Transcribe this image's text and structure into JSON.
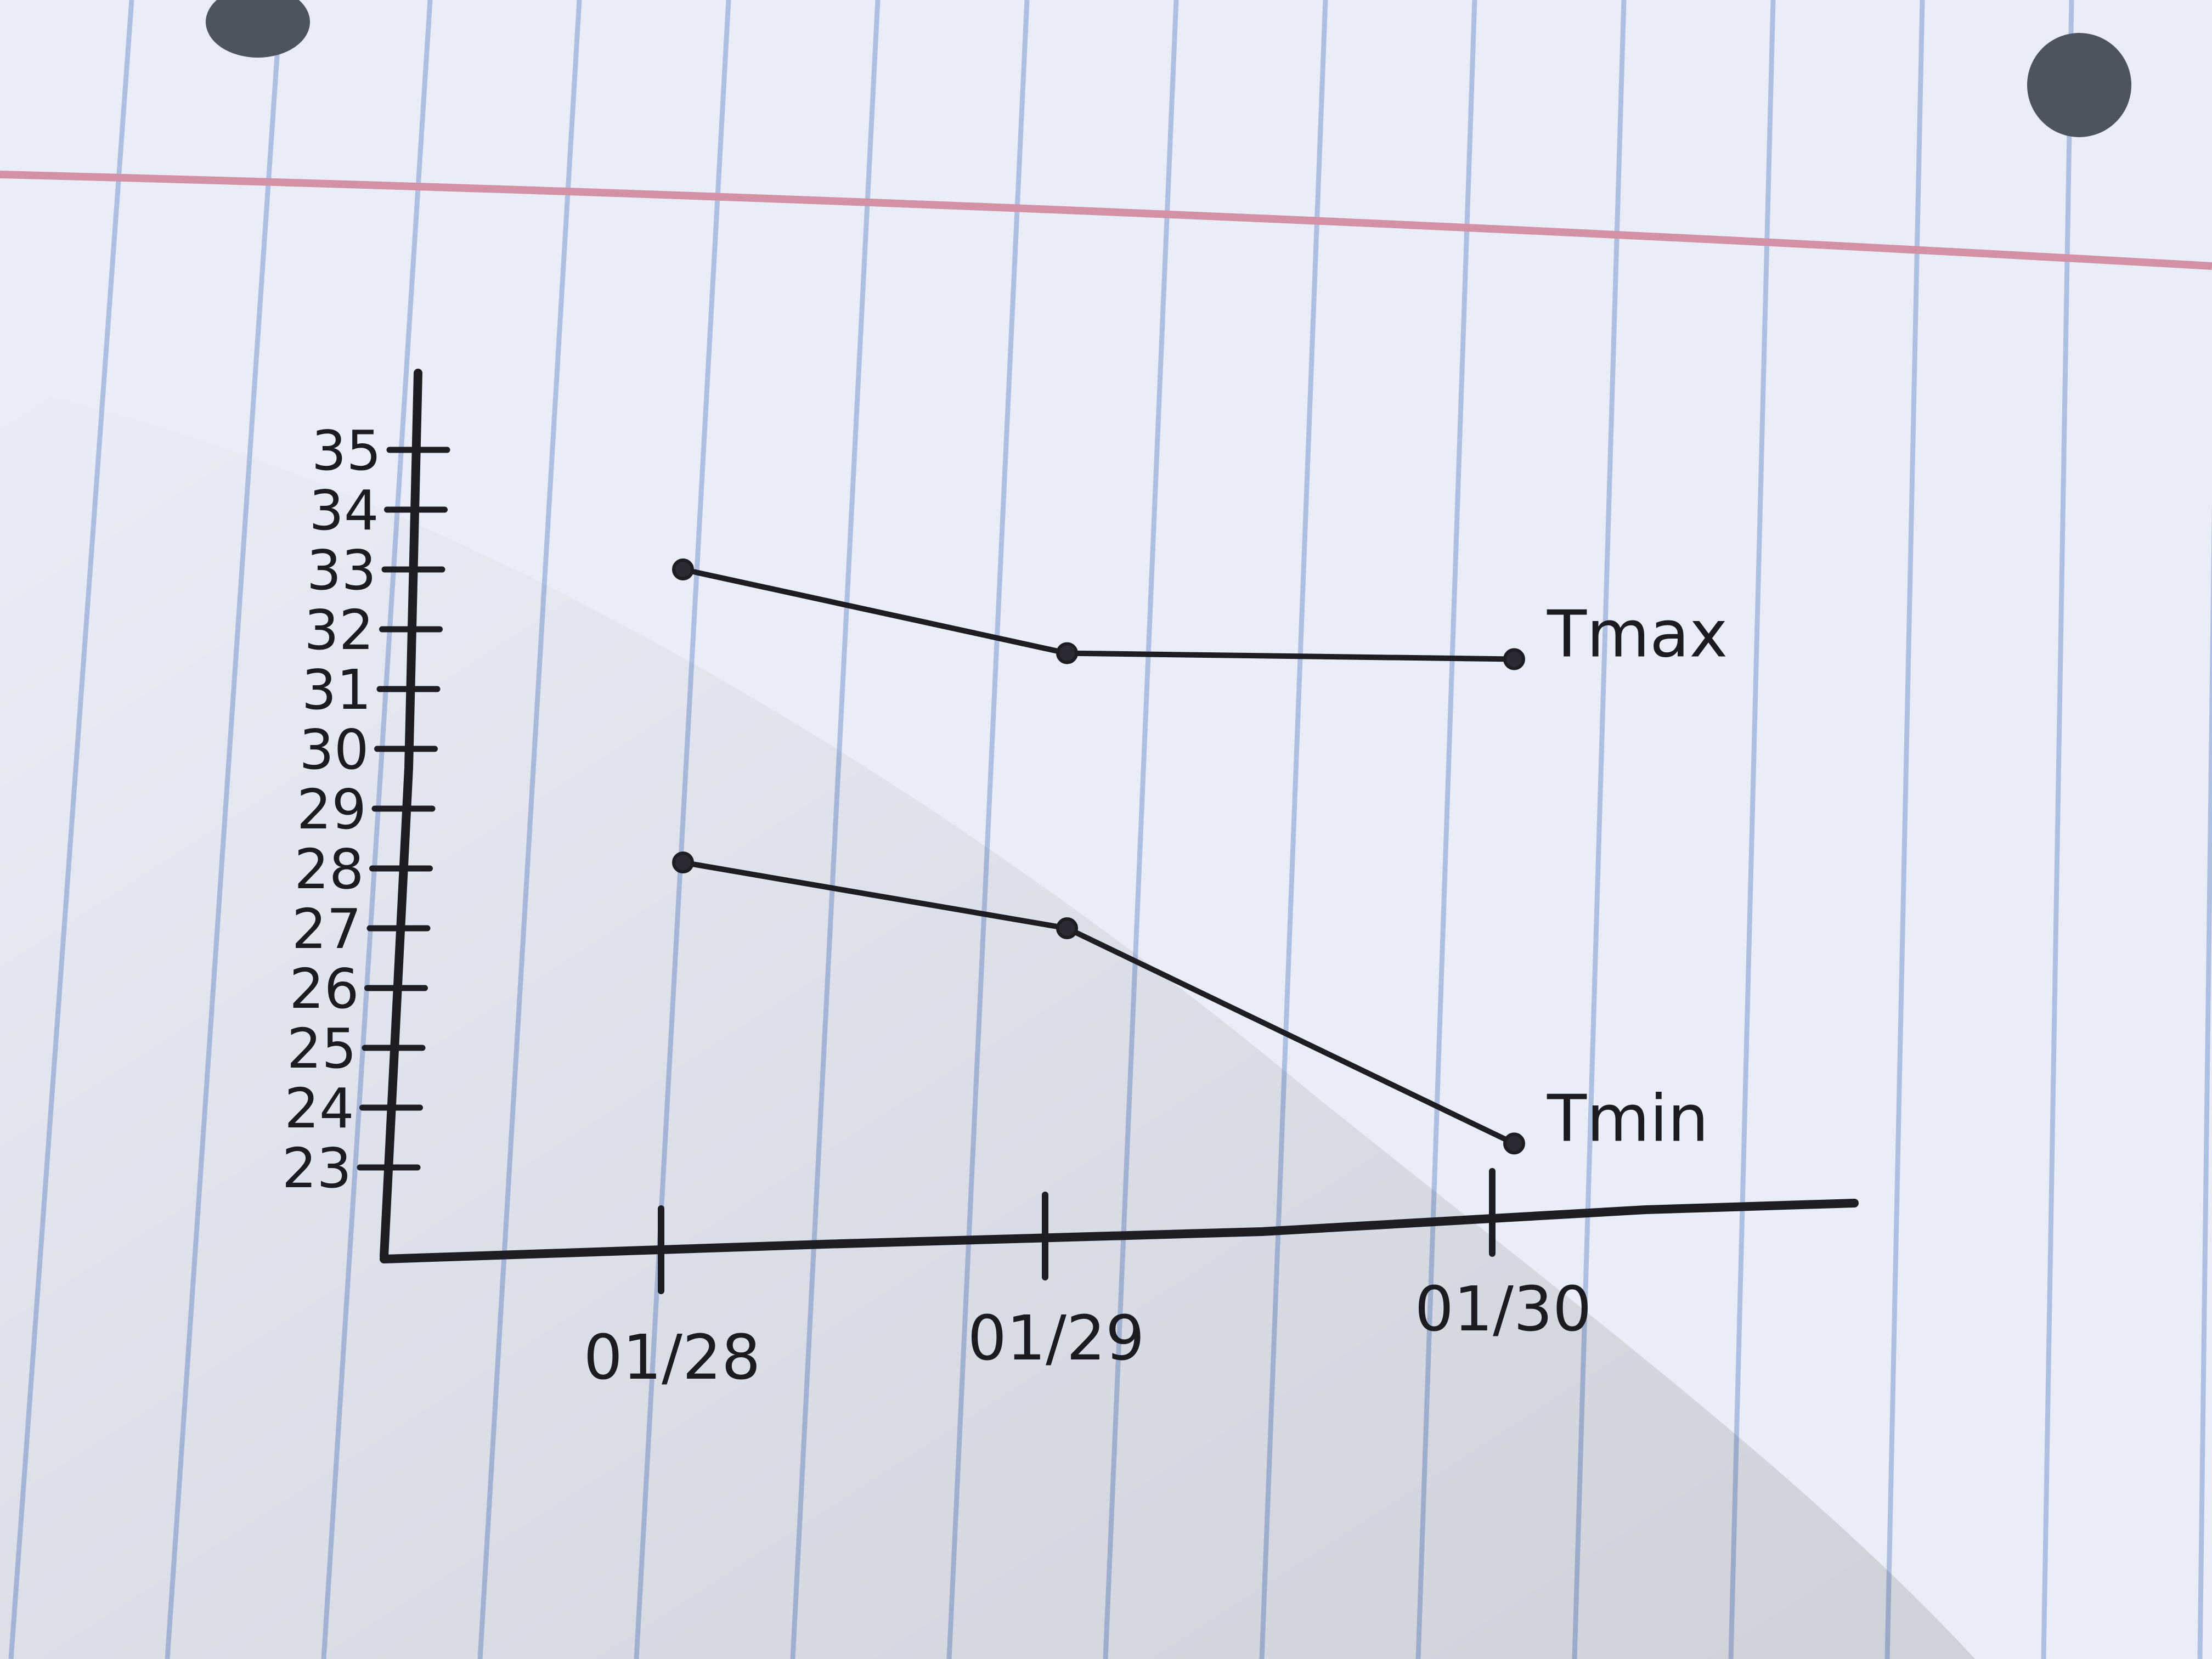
{
  "chart_data": {
    "type": "line",
    "title": "",
    "xlabel": "",
    "ylabel": "",
    "x": [
      "01/28",
      "01/29",
      "01/30"
    ],
    "x_tick_labels": [
      "01/28",
      "01/29",
      "01/30"
    ],
    "y_ticks": [
      23,
      24,
      25,
      26,
      27,
      28,
      29,
      30,
      31,
      32,
      33,
      34,
      35
    ],
    "ylim": [
      21.5,
      35
    ],
    "grid": false,
    "legend": "none",
    "series": [
      {
        "name": "Tmax",
        "values": [
          33,
          31.6,
          31.5
        ]
      },
      {
        "name": "Tmin",
        "values": [
          28.1,
          27,
          23.4
        ]
      }
    ]
  },
  "colors": {
    "paper": "#e9edf7",
    "rule_blue": "#9fb4dd",
    "margin_red": "#cf8aa0",
    "ink": "#1d1d24"
  }
}
